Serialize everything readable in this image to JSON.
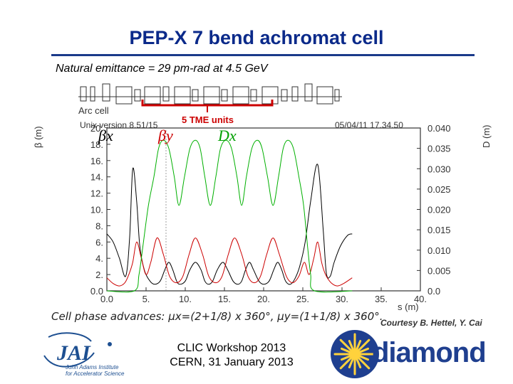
{
  "slide": {
    "title": "PEP-X 7 bend achromat cell",
    "subtitle": "Natural emittance = 29 pm-rad at 4.5 GeV",
    "phase_text": "Cell phase advances: μx=(2+1/8) x 360°, μy=(1+1/8) x 360°.",
    "courtesy": "Courtesy B. Hettel, Y. Cai",
    "footer_line1": "CLIC Workshop 2013",
    "footer_line2": "CERN, 31 January 2013",
    "logo_left_lines": [
      "John Adams Institute",
      "for Accelerator Science"
    ],
    "logo_right_text": "diamond"
  },
  "chart_data": {
    "type": "line",
    "header_left": "Arc cell",
    "header_version": "Unix version 8.51/15",
    "header_date": "05/04/11  17.34.50",
    "annotation": "5 TME units",
    "ylabel_left": "β (m)",
    "ylabel_right": "D (m)",
    "xlabel": "s (m)",
    "xlim": [
      0,
      40
    ],
    "ylim_left": [
      0,
      20
    ],
    "ylim_right": [
      0,
      0.04
    ],
    "xticks": [
      "0.0",
      "5.",
      "10.",
      "15.",
      "20.",
      "25.",
      "30.",
      "35.",
      "40."
    ],
    "yticks_left": [
      "0.0",
      "2.",
      "4.",
      "6.",
      "8.",
      "10.",
      "12.",
      "14.",
      "16.",
      "18.",
      "20."
    ],
    "yticks_right": [
      "0.0",
      "0.005",
      "0.010",
      "0.015",
      "0.020",
      "0.025",
      "0.030",
      "0.035",
      "0.040"
    ],
    "legend": [
      {
        "label": "βx",
        "color": "#000000"
      },
      {
        "label": "βy",
        "color": "#cc0000"
      },
      {
        "label": "Dx",
        "color": "#00a000"
      }
    ],
    "colors": {
      "betax": "#000000",
      "betay": "#cc0000",
      "dx": "#00b000",
      "annotation": "#cc0000"
    },
    "series": [
      {
        "id": "betax",
        "x": [
          0,
          0.8,
          1.6,
          2.4,
          2.9,
          3.3,
          3.8,
          4.2,
          4.8,
          5.5,
          6.1,
          6.8,
          7.4,
          7.9,
          8.4,
          8.9,
          9.3,
          10.0,
          10.6,
          11.3,
          12.0,
          12.5,
          13.0,
          13.5,
          14.1,
          14.8,
          15.4,
          16.1,
          16.7,
          17.2,
          17.7,
          18.2,
          18.7,
          19.4,
          20.0,
          20.7,
          21.3,
          21.8,
          22.3,
          22.8,
          23.4,
          24.0,
          24.6,
          25.3,
          26.0,
          26.9,
          27.6,
          28.0,
          28.5,
          29.0,
          29.8,
          30.7,
          31.3
        ],
        "y": [
          7.0,
          6.0,
          4.0,
          1.8,
          6.5,
          15.0,
          11.0,
          5.5,
          2.5,
          1.2,
          0.8,
          1.2,
          2.6,
          3.5,
          2.6,
          1.2,
          0.8,
          1.2,
          2.6,
          3.5,
          2.6,
          1.2,
          0.8,
          1.2,
          2.6,
          3.5,
          2.6,
          1.2,
          0.8,
          1.2,
          2.6,
          3.5,
          2.6,
          1.2,
          0.8,
          1.2,
          2.6,
          3.5,
          2.6,
          1.2,
          0.8,
          1.5,
          3.0,
          6.0,
          11.0,
          15.5,
          7.5,
          2.2,
          1.8,
          3.5,
          5.5,
          6.8,
          7.0
        ]
      },
      {
        "id": "betay",
        "x": [
          0,
          0.8,
          1.6,
          2.3,
          2.8,
          3.3,
          3.8,
          4.4,
          5.0,
          5.6,
          6.4,
          7.2,
          8.0,
          8.9,
          9.7,
          10.5,
          11.3,
          12.2,
          13.0,
          13.9,
          14.7,
          15.5,
          16.3,
          17.2,
          18.0,
          18.8,
          19.6,
          20.4,
          21.2,
          22.0,
          22.9,
          23.7,
          24.5,
          25.2,
          25.8,
          26.4,
          26.9,
          27.4,
          27.9,
          28.6,
          29.4,
          30.2,
          31.3
        ],
        "y": [
          1.6,
          0.9,
          0.6,
          1.0,
          2.0,
          3.5,
          6.0,
          4.0,
          2.0,
          3.5,
          6.5,
          4.5,
          1.8,
          1.0,
          1.8,
          4.5,
          6.5,
          4.5,
          1.8,
          1.0,
          1.8,
          4.5,
          6.5,
          4.5,
          1.8,
          1.0,
          1.8,
          4.5,
          6.5,
          4.5,
          1.8,
          1.0,
          1.8,
          3.5,
          2.0,
          4.0,
          6.0,
          3.5,
          2.0,
          1.0,
          0.6,
          0.9,
          1.6
        ]
      },
      {
        "id": "dx",
        "x": [
          0,
          3.5,
          4.1,
          4.6,
          5.3,
          6.0,
          6.6,
          7.2,
          7.9,
          8.6,
          9.2,
          9.9,
          10.6,
          11.3,
          11.9,
          12.5,
          13.2,
          13.9,
          14.5,
          15.2,
          15.9,
          16.6,
          17.2,
          17.8,
          18.5,
          19.2,
          19.8,
          20.5,
          21.2,
          21.9,
          22.5,
          23.1,
          23.8,
          24.5,
          25.1,
          25.6,
          26.0,
          26.5,
          31.3
        ],
        "y": [
          0,
          0,
          0.004,
          0.011,
          0.021,
          0.028,
          0.035,
          0.037,
          0.035,
          0.028,
          0.021,
          0.028,
          0.035,
          0.037,
          0.035,
          0.028,
          0.021,
          0.028,
          0.035,
          0.037,
          0.035,
          0.028,
          0.021,
          0.028,
          0.035,
          0.037,
          0.035,
          0.028,
          0.021,
          0.028,
          0.035,
          0.037,
          0.035,
          0.028,
          0.021,
          0.011,
          0.004,
          0,
          0
        ]
      }
    ]
  }
}
